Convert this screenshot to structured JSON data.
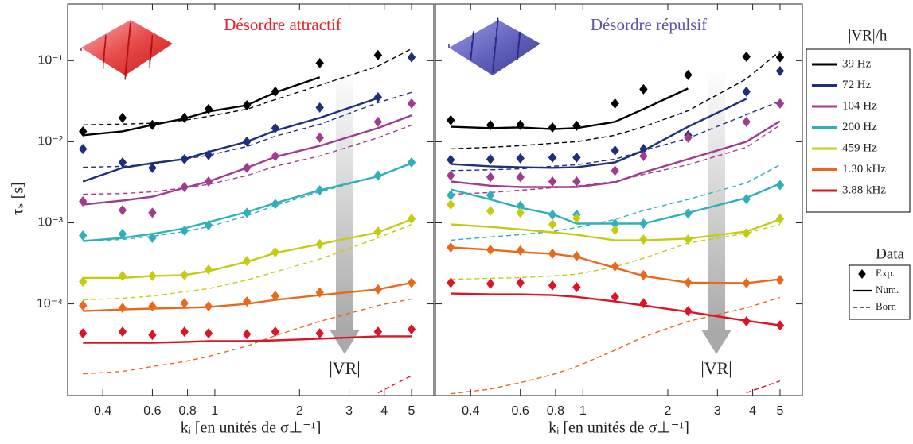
{
  "chart_data": [
    {
      "type": "line",
      "title": "Désordre attractif",
      "title_color": "#e8202a",
      "xlabel": "kᵢ [en unités de σ⊥⁻¹]",
      "ylabel": "τₛ [s]",
      "annotation": "|VR|",
      "legend_title": "|VR|/h",
      "data_legend": {
        "title": "Data",
        "entries": [
          "Exp.",
          "Num.",
          "Born"
        ]
      },
      "log_x": true,
      "log_y": true,
      "x": [
        0.34,
        0.47,
        0.6,
        0.78,
        0.95,
        1.3,
        1.64,
        2.36,
        3.8,
        5
      ],
      "xlim": [
        0.3,
        6
      ],
      "xticks": [
        0.4,
        0.6,
        0.8,
        1,
        2,
        3,
        4,
        5
      ],
      "ylim": [
        7.4e-06,
        0.5
      ],
      "yticks": [
        {
          "value": 0.0001,
          "label": "10⁻⁴"
        },
        {
          "value": 0.001,
          "label": "10⁻³"
        },
        {
          "value": 0.01,
          "label": "10⁻²"
        },
        {
          "value": 0.1,
          "label": "10⁻¹"
        }
      ],
      "series": [
        {
          "name": "39 Hz",
          "color": "#000000",
          "values": [
            0.0134,
            0.0197,
            0.0161,
            0.0197,
            0.0253,
            0.0282,
            0.0415,
            0.0935,
            0.117,
            null
          ],
          "num_values": [
            0.012,
            0.0134,
            0.0161,
            0.0193,
            0.0236,
            0.0282,
            0.0405,
            0.0623,
            null,
            null
          ],
          "born_values": [
            0.0161,
            0.0165,
            0.0169,
            0.0184,
            0.0206,
            0.0252,
            0.0331,
            0.0497,
            0.0854,
            0.14
          ]
        },
        {
          "name": "72 Hz",
          "color": "#1f2f7a",
          "values": [
            0.00816,
            0.00556,
            0.00476,
            0.00609,
            0.00684,
            0.01,
            0.0147,
            0.0264,
            0.0354,
            0.11
          ],
          "num_values": [
            0.00323,
            0.00476,
            0.00545,
            0.0061,
            0.0075,
            0.01,
            0.0137,
            0.0197,
            0.0346,
            null
          ],
          "born_values": [
            0.00484,
            0.00497,
            0.00532,
            0.0061,
            0.00681,
            0.00871,
            0.0117,
            0.0164,
            0.0303,
            0.0406
          ]
        },
        {
          "name": "104 Hz",
          "color": "#a03c8e",
          "values": [
            0.00184,
            0.00143,
            0.00133,
            0.00276,
            0.00323,
            0.00476,
            0.00666,
            0.0112,
            0.0176,
            0.0296
          ],
          "num_values": [
            0.00168,
            0.00188,
            0.0021,
            0.0027,
            0.00323,
            0.00476,
            0.0065,
            0.0089,
            0.0147,
            0.0211
          ],
          "born_values": [
            0.00225,
            0.0023,
            0.00241,
            0.0027,
            0.00297,
            0.00383,
            0.00497,
            0.00666,
            0.0112,
            0.016
          ]
        },
        {
          "name": "200 Hz",
          "color": "#2fb0b8",
          "values": [
            0.000697,
            0.00073,
            0.000651,
            0.000798,
            0.000935,
            0.00133,
            0.00171,
            0.00252,
            0.00383,
            0.00556
          ],
          "num_values": [
            0.000595,
            0.000651,
            0.00073,
            0.000854,
            0.00102,
            0.00136,
            0.00175,
            0.00252,
            0.00374,
            0.00545
          ],
          "born_values": [
            0.000595,
            0.000623,
            0.000681,
            0.000781,
            0.000894,
            0.00122,
            0.00164,
            0.00241,
            0.00374,
            0.00532
          ]
        },
        {
          "name": "459 Hz",
          "color": "#c4cc12",
          "values": [
            0.000188,
            0.000221,
            0.000221,
            0.000226,
            0.000264,
            0.000338,
            0.000434,
            0.000546,
            0.00078,
            0.00112
          ],
          "num_values": [
            0.000209,
            0.000209,
            0.000221,
            0.000226,
            0.000253,
            0.00033,
            0.000424,
            0.000546,
            0.000762,
            0.0011
          ],
          "born_values": [
            0.000112,
            0.000117,
            0.000125,
            0.000141,
            0.000154,
            0.000197,
            0.000248,
            0.000357,
            0.000651,
            0.000955
          ]
        },
        {
          "name": "1.30 kHz",
          "color": "#e8691e",
          "values": [
            9.56e-05,
            8.92e-05,
            9.33e-05,
            0.000102,
            9.33e-05,
            0.000107,
            0.000125,
            0.000138,
            0.000151,
            0.000182
          ],
          "num_values": [
            8.16e-05,
            8.54e-05,
            8.74e-05,
            8.92e-05,
            9.14e-05,
            0.0001,
            0.000112,
            0.000128,
            0.000151,
            0.000182
          ],
          "born_values": [
            1.37e-05,
            1.47e-05,
            1.69e-05,
            1.94e-05,
            2.25e-05,
            3.02e-05,
            4.05e-05,
            6.09e-05,
            9.56e-05,
            0.000115
          ]
        },
        {
          "name": "3.88 kHz",
          "color": "#dc1428",
          "values": [
            4.33e-05,
            4.53e-05,
            4.14e-05,
            4.53e-05,
            4.33e-05,
            4.23e-05,
            4.53e-05,
            4.33e-05,
            4.53e-05,
            4.86e-05
          ],
          "num_values": [
            3.31e-05,
            3.31e-05,
            3.31e-05,
            3.39e-05,
            3.47e-05,
            3.47e-05,
            3.55e-05,
            3.72e-05,
            3.98e-05,
            3.98e-05
          ],
          "born_values": [
            null,
            null,
            null,
            null,
            null,
            null,
            null,
            null,
            8e-06,
            1.3e-05
          ]
        }
      ]
    },
    {
      "type": "line",
      "title": "Désordre répulsif",
      "title_color": "#5555aa",
      "xlabel": "kᵢ [en unités de σ⊥⁻¹]",
      "annotation": "|VR|",
      "log_x": true,
      "log_y": true,
      "x": [
        0.34,
        0.47,
        0.6,
        0.78,
        0.95,
        1.3,
        1.64,
        2.36,
        3.8,
        5
      ],
      "xlim": [
        0.3,
        6
      ],
      "xticks": [
        0.4,
        0.6,
        0.8,
        1,
        2,
        3,
        4,
        5
      ],
      "ylim": [
        7.4e-06,
        0.5
      ],
      "yticks": [
        0.0001,
        0.001,
        0.01,
        0.1
      ],
      "series": [
        {
          "color": "#000000",
          "values": [
            0.0184,
            0.016,
            0.0161,
            0.015,
            0.0157,
            0.0296,
            0.0444,
            0.0666,
            0.112,
            0.11
          ],
          "num_values": [
            0.0153,
            0.0147,
            0.015,
            0.0143,
            0.0147,
            0.0176,
            0.0253,
            0.0454,
            null,
            null
          ],
          "born_values": [
            0.00816,
            0.00855,
            0.00893,
            0.00957,
            0.01,
            0.012,
            0.0153,
            0.0241,
            0.0595,
            0.131
          ]
        },
        {
          "color": "#1f2f7a",
          "values": [
            0.00598,
            0.00609,
            0.00623,
            0.00638,
            0.00638,
            0.00779,
            0.00816,
            0.012,
            0.0415,
            0.0746
          ],
          "num_values": [
            0.0053,
            0.00497,
            0.00484,
            0.00476,
            0.00484,
            0.00556,
            0.00779,
            0.0153,
            0.0338,
            null
          ],
          "born_values": [
            0.0044,
            0.0045,
            0.00463,
            0.00497,
            0.0052,
            0.00609,
            0.00779,
            0.011,
            0.0216,
            0.0316
          ]
        },
        {
          "color": "#a03c8e",
          "values": [
            0.00383,
            0.00366,
            0.00366,
            0.00323,
            0.00323,
            0.0044,
            0.00666,
            0.0112,
            0.0176,
            0.0296
          ],
          "num_values": [
            0.00323,
            0.00287,
            0.00276,
            0.00276,
            0.00276,
            0.00316,
            0.00419,
            0.00609,
            0.01,
            0.0179
          ],
          "born_values": [
            0.00225,
            0.00236,
            0.00252,
            0.0027,
            0.00283,
            0.00323,
            0.00395,
            0.0052,
            0.00855,
            0.016
          ]
        },
        {
          "color": "#2fb0b8",
          "values": [
            0.00219,
            0.00219,
            0.00162,
            0.00126,
            0.00126,
            0.000977,
            0.000977,
            0.0013,
            0.00196,
            0.00292
          ],
          "num_values": [
            0.00258,
            0.00194,
            0.00154,
            0.00128,
            0.000977,
            0.000977,
            0.000977,
            0.00133,
            0.00203,
            0.00304
          ],
          "born_values": [
            0.00061,
            0.00067,
            0.000714,
            0.000781,
            0.000874,
            0.0011,
            0.00142,
            0.00194,
            0.0031,
            0.00519
          ]
        },
        {
          "color": "#c4cc12",
          "values": [
            0.00168,
            0.0014,
            0.00133,
            0.000955,
            0.00114,
            0.000815,
            0.000622,
            0.000622,
            0.000742,
            0.00112
          ],
          "num_values": [
            0.000955,
            0.00089,
            0.00083,
            0.000762,
            0.000712,
            0.000608,
            0.000608,
            0.000638,
            0.00078,
            0.0011
          ],
          "born_values": [
            0.000201,
            0.000206,
            0.000211,
            0.000221,
            0.000232,
            0.000285,
            0.000366,
            0.000562,
            0.000742,
            0.000955
          ]
        },
        {
          "color": "#e8691e",
          "values": [
            0.000497,
            0.000465,
            0.000455,
            0.000416,
            0.000389,
            0.000289,
            0.000226,
            0.000183,
            0.00018,
            0.000197
          ],
          "num_values": [
            0.000497,
            0.000465,
            0.000434,
            0.000416,
            0.00038,
            0.000278,
            0.000221,
            0.000183,
            0.00018,
            0.000201
          ],
          "born_values": [
            7.8e-06,
            8.9e-06,
            1.07e-05,
            1.34e-05,
            1.69e-05,
            2.68e-05,
            3.93e-05,
            6.09e-05,
            8.92e-05,
            0.00012
          ]
        },
        {
          "color": "#dc1428",
          "values": [
            0.000182,
            0.000177,
            0.000182,
            0.000169,
            0.000161,
            0.000122,
            0.000102,
            8.16e-05,
            6.09e-05,
            5.44e-05
          ],
          "num_values": [
            0.000134,
            0.000131,
            0.000131,
            0.000128,
            0.000122,
            0.000107,
            9.56e-05,
            7.97e-05,
            6.19e-05,
            5.44e-05
          ],
          "born_values": [
            null,
            null,
            null,
            null,
            null,
            null,
            null,
            null,
            8e-06,
            1.12e-05
          ]
        }
      ]
    }
  ]
}
